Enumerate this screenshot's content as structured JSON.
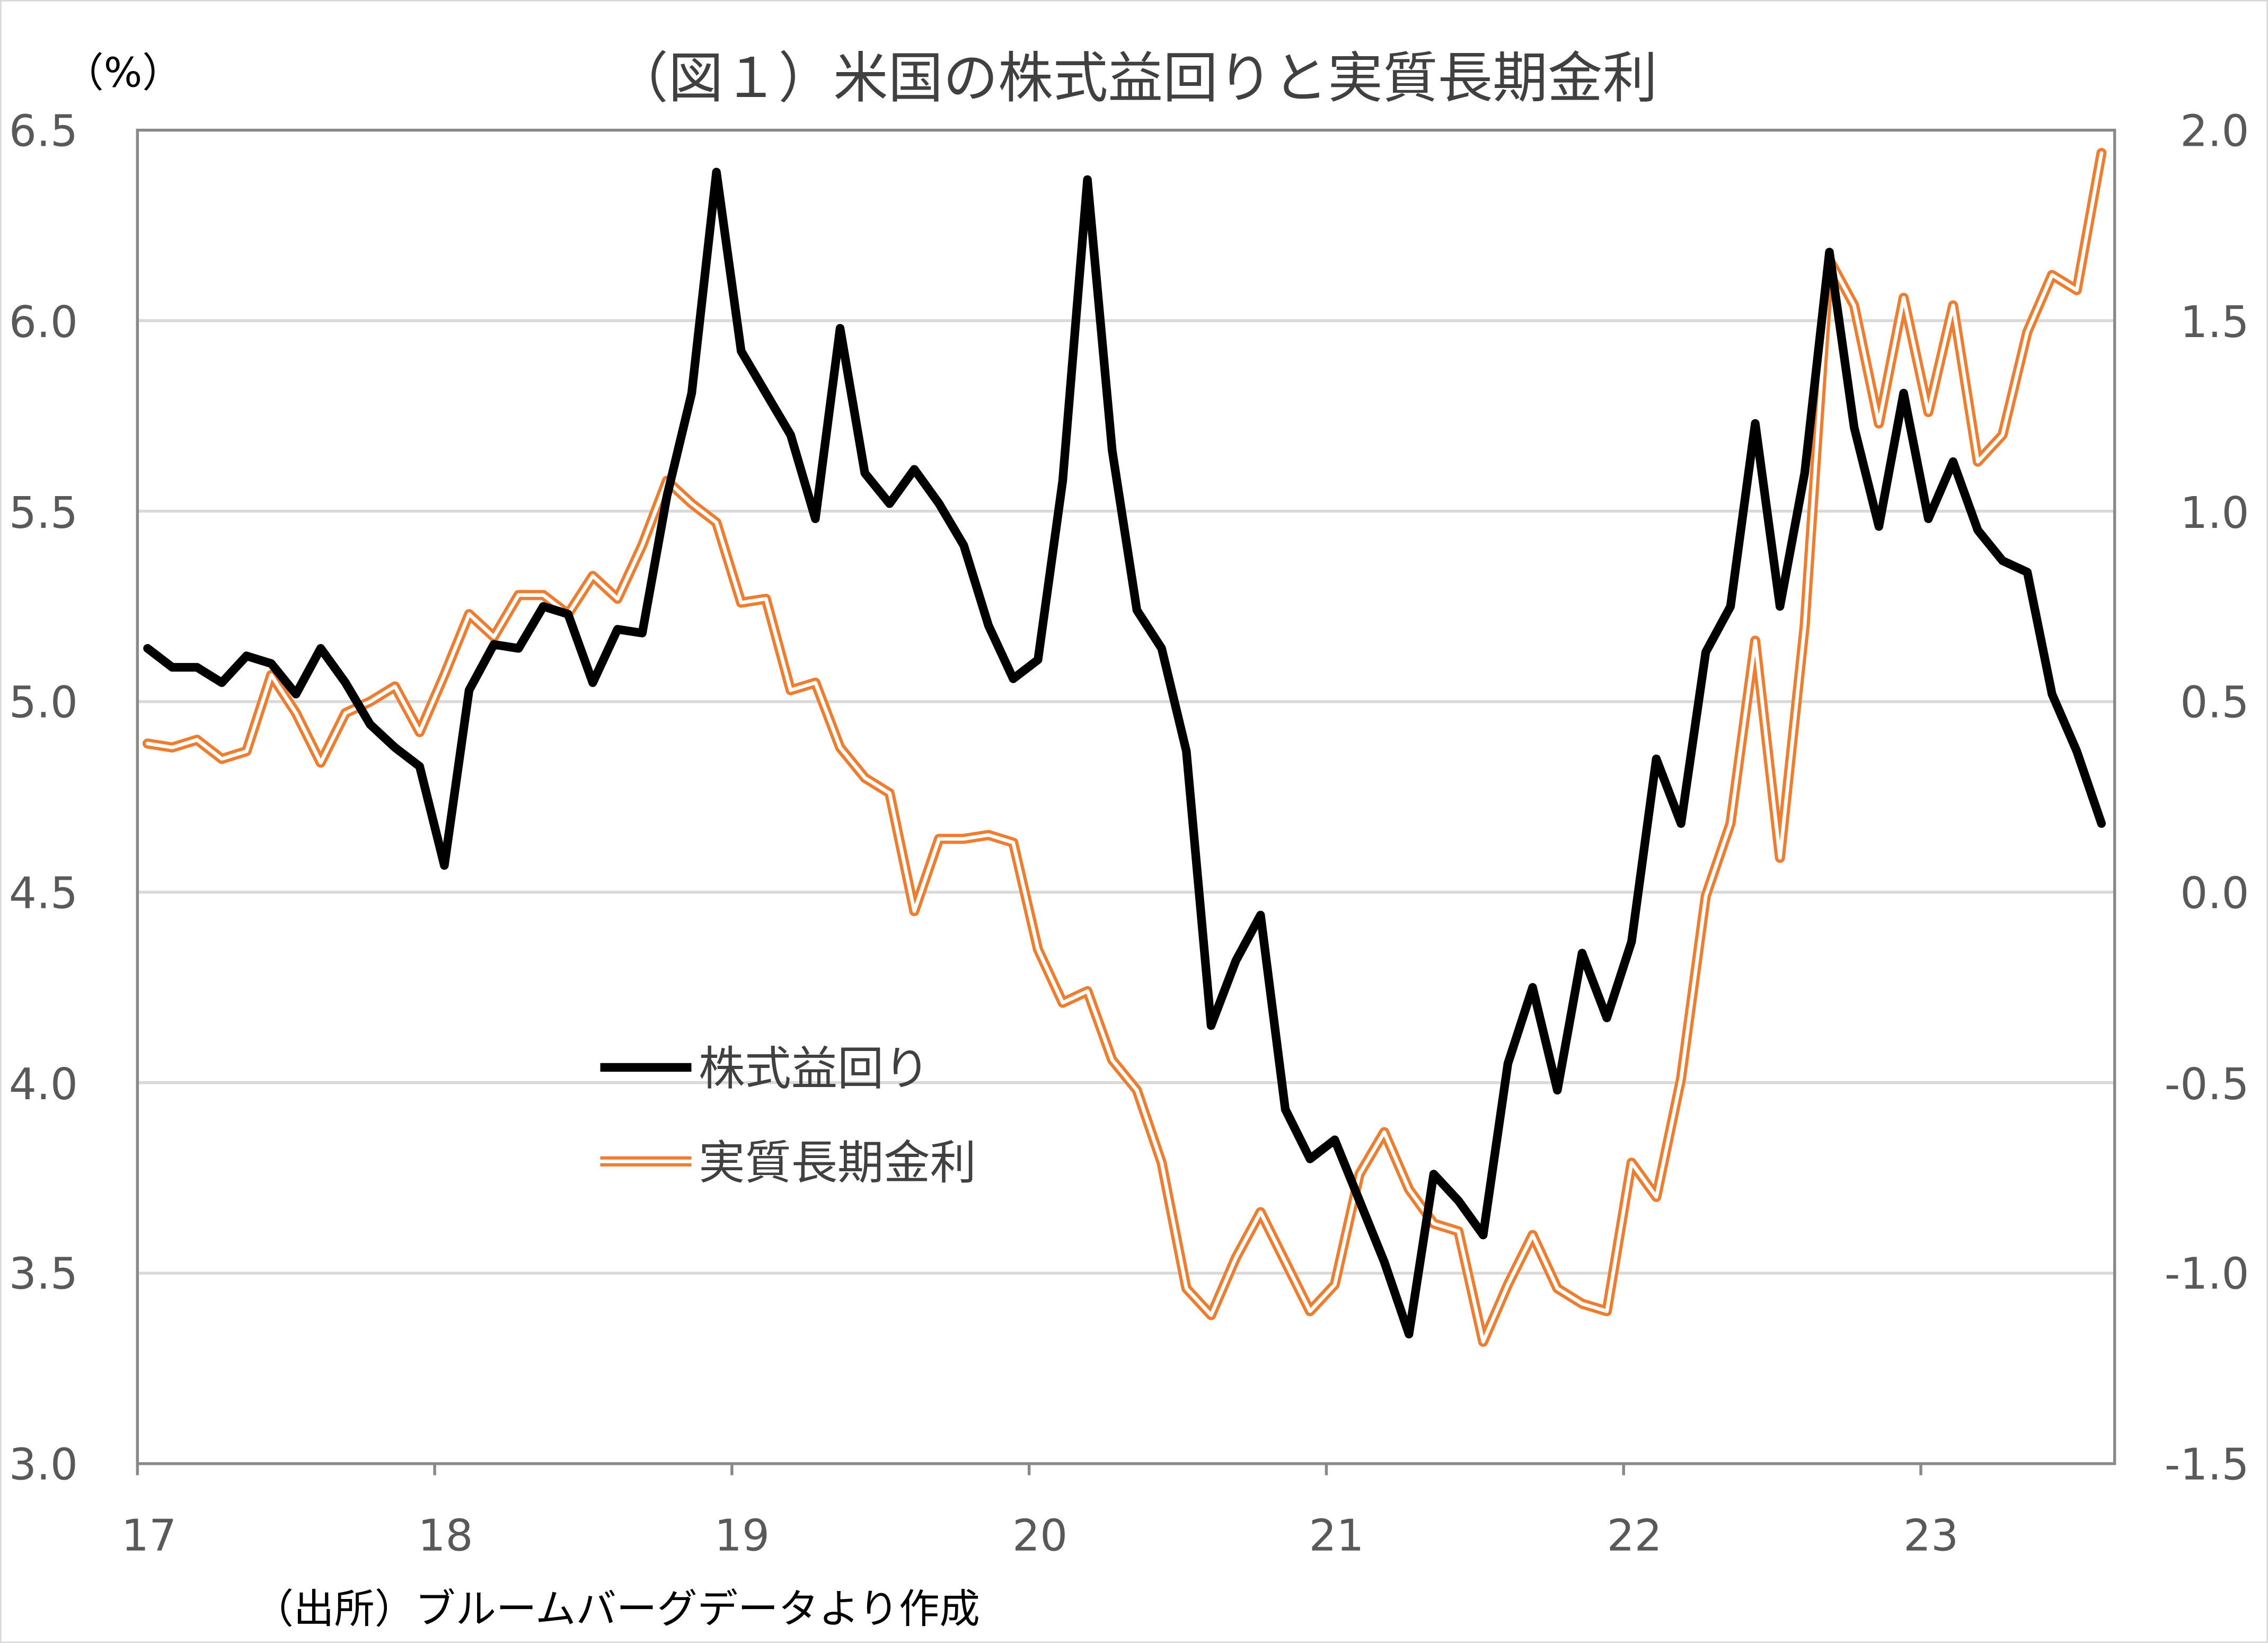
{
  "chart_data": {
    "type": "line",
    "title": "（図１）米国の株式益回りと実質長期金利",
    "y_left_unit": "（%）",
    "source_note": "（出所）ブルームバーグデータより作成",
    "x_tick_labels": [
      "17",
      "18",
      "19",
      "20",
      "21",
      "22",
      "23"
    ],
    "y_left_ticks": [
      "6.5",
      "6.0",
      "5.5",
      "5.0",
      "4.5",
      "4.0",
      "3.5",
      "3.0"
    ],
    "y_right_ticks": [
      "2.0",
      "1.5",
      "1.0",
      "0.5",
      "0.0",
      "-0.5",
      "-1.0",
      "-1.5"
    ],
    "y_left_lim": [
      3.0,
      6.5
    ],
    "y_right_lim": [
      -1.5,
      2.0
    ],
    "x_range": "2017-01 to 2023-08 (monthly)",
    "grid": "horizontal",
    "legend_placement": "center-left",
    "series": [
      {
        "name": "株式益回り",
        "axis": "left",
        "color": "#000000",
        "values": [
          5.14,
          5.09,
          5.09,
          5.05,
          5.12,
          5.1,
          5.02,
          5.14,
          5.05,
          4.94,
          4.88,
          4.83,
          4.57,
          5.03,
          5.15,
          5.14,
          5.25,
          5.23,
          5.05,
          5.19,
          5.18,
          5.54,
          5.81,
          6.39,
          5.92,
          5.81,
          5.7,
          5.48,
          5.98,
          5.6,
          5.52,
          5.61,
          5.52,
          5.41,
          5.2,
          5.06,
          5.11,
          5.58,
          6.37,
          5.66,
          5.24,
          5.14,
          4.87,
          4.15,
          4.32,
          4.44,
          3.93,
          3.8,
          3.85,
          3.69,
          3.53,
          3.34,
          3.76,
          3.69,
          3.6,
          4.05,
          4.25,
          3.98,
          4.34,
          4.17,
          4.37,
          4.85,
          4.68,
          5.13,
          5.25,
          5.73,
          5.25,
          5.6,
          6.18,
          5.72,
          5.46,
          5.81,
          5.48,
          5.63,
          5.45,
          5.37,
          5.34,
          5.02,
          4.87,
          4.68
        ]
      },
      {
        "name": "実質長期金利",
        "axis": "right",
        "color": "#ED7D31",
        "values": [
          0.39,
          0.38,
          0.4,
          0.35,
          0.37,
          0.57,
          0.47,
          0.34,
          0.47,
          0.5,
          0.54,
          0.42,
          0.57,
          0.73,
          0.67,
          0.78,
          0.78,
          0.73,
          0.83,
          0.77,
          0.91,
          1.08,
          1.02,
          0.97,
          0.76,
          0.77,
          0.53,
          0.55,
          0.38,
          0.3,
          0.26,
          -0.05,
          0.14,
          0.14,
          0.15,
          0.13,
          -0.15,
          -0.29,
          -0.26,
          -0.44,
          -0.52,
          -0.71,
          -1.04,
          -1.11,
          -0.96,
          -0.84,
          -0.97,
          -1.1,
          -1.03,
          -0.74,
          -0.63,
          -0.78,
          -0.87,
          -0.89,
          -1.18,
          -1.03,
          -0.9,
          -1.04,
          -1.08,
          -1.1,
          -0.71,
          -0.8,
          -0.49,
          -0.01,
          0.18,
          0.66,
          0.09,
          0.7,
          1.66,
          1.54,
          1.23,
          1.56,
          1.26,
          1.54,
          1.13,
          1.2,
          1.47,
          1.62,
          1.58,
          1.94
        ]
      }
    ]
  }
}
